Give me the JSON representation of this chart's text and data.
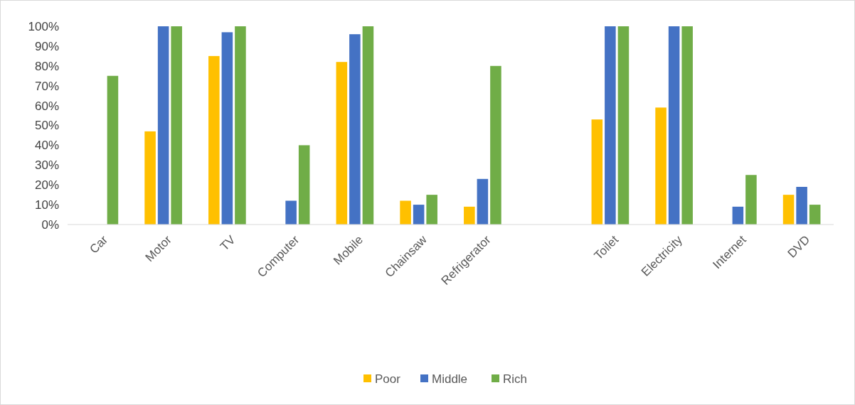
{
  "chart_data": {
    "type": "bar",
    "categories": [
      "Car",
      "Motor",
      "TV",
      "Computer",
      "Mobile",
      "Chainsaw",
      "Refrigerator",
      null,
      "Toilet",
      "Electricity",
      "Internet",
      "DVD"
    ],
    "series": [
      {
        "name": "Poor",
        "color": "#ffc000",
        "values": [
          null,
          47,
          85,
          null,
          82,
          12,
          9,
          null,
          53,
          59,
          null,
          15
        ]
      },
      {
        "name": "Middle",
        "color": "#4472c4",
        "values": [
          null,
          100,
          97,
          12,
          96,
          10,
          23,
          null,
          100,
          100,
          9,
          19
        ]
      },
      {
        "name": "Rich",
        "color": "#70ad47",
        "values": [
          75,
          100,
          100,
          40,
          100,
          15,
          80,
          null,
          100,
          100,
          25,
          10
        ]
      }
    ],
    "ylim": [
      0,
      100
    ],
    "yticks": [
      {
        "value": 0,
        "label": "0%"
      },
      {
        "value": 10,
        "label": "10%"
      },
      {
        "value": 20,
        "label": "20%"
      },
      {
        "value": 30,
        "label": "30%"
      },
      {
        "value": 40,
        "label": "40%"
      },
      {
        "value": 50,
        "label": "50%"
      },
      {
        "value": 60,
        "label": "60%"
      },
      {
        "value": 70,
        "label": "70%"
      },
      {
        "value": 80,
        "label": "80%"
      },
      {
        "value": 90,
        "label": "90%"
      },
      {
        "value": 100,
        "label": "100%"
      }
    ],
    "legend": "bottom"
  }
}
